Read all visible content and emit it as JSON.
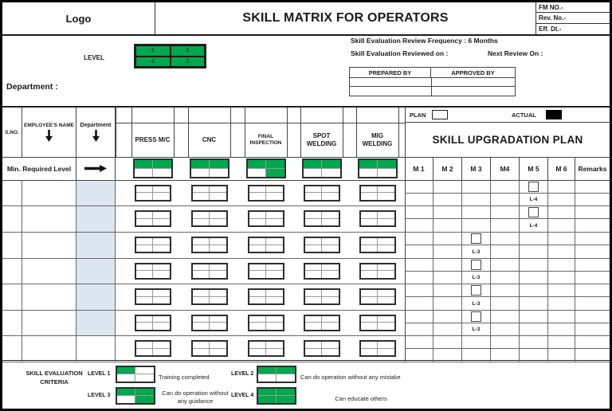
{
  "header": {
    "logo": "Logo",
    "title": "SKILL MATRIX FOR OPERATORS",
    "doc_fields": [
      "FM NO.-",
      "Rev. No.-",
      "Eff. Dt.-"
    ]
  },
  "level_legend": {
    "label": "LEVEL",
    "cells": [
      [
        "1",
        "2"
      ],
      [
        "4",
        "3"
      ]
    ]
  },
  "review_info": {
    "frequency": "Skill Evaluation Review Frequency :  6 Months",
    "reviewed_on": "Skill Evaluation Reviewed on  :",
    "next_review": "Next Review On  :"
  },
  "signoff": {
    "columns": [
      "PREPARED BY",
      "APPROVED BY"
    ],
    "empty_rows": 2
  },
  "department_label": "Department :",
  "matrix": {
    "col_headers": {
      "sno": "S.NO.",
      "name": "EMPLOYEE'S NAME",
      "dept": "Department"
    },
    "machines": [
      "PRESS M/C",
      "CNC",
      "FINAL INSPECTION",
      "SPOT WELDING",
      "MIG WELDING"
    ],
    "min_required": {
      "label": "Min. Required Level",
      "levels": [
        2,
        2,
        3,
        2,
        2
      ]
    },
    "rows": [
      {
        "sno": "",
        "name": "",
        "dept": "",
        "dept_shaded": true,
        "levels": [
          0,
          0,
          0,
          0,
          0
        ],
        "plan": {
          "month": "M 5",
          "target": "L-4"
        }
      },
      {
        "sno": "",
        "name": "",
        "dept": "",
        "dept_shaded": true,
        "levels": [
          0,
          0,
          0,
          0,
          0
        ],
        "plan": {
          "month": "M 5",
          "target": "L-4"
        }
      },
      {
        "sno": "",
        "name": "",
        "dept": "",
        "dept_shaded": true,
        "levels": [
          0,
          0,
          0,
          0,
          0
        ],
        "plan": {
          "month": "M 3",
          "target": "L-3"
        }
      },
      {
        "sno": "",
        "name": "",
        "dept": "",
        "dept_shaded": true,
        "levels": [
          0,
          0,
          0,
          0,
          0
        ],
        "plan": {
          "month": "M 3",
          "target": "L-3"
        }
      },
      {
        "sno": "",
        "name": "",
        "dept": "",
        "dept_shaded": true,
        "levels": [
          0,
          0,
          0,
          0,
          0
        ],
        "plan": {
          "month": "M 3",
          "target": "L-3"
        }
      },
      {
        "sno": "",
        "name": "",
        "dept": "",
        "dept_shaded": true,
        "levels": [
          0,
          0,
          0,
          0,
          0
        ],
        "plan": {
          "month": "M 3",
          "target": "L-3"
        }
      },
      {
        "sno": "",
        "name": "",
        "dept": "",
        "dept_shaded": false,
        "levels": [
          0,
          0,
          0,
          0,
          0
        ],
        "plan": null
      }
    ]
  },
  "upgradation": {
    "plan_label": "PLAN",
    "actual_label": "ACTUAL",
    "title": "SKILL UPGRADATION PLAN",
    "month_headers": [
      "M 1",
      "M 2",
      "M 3",
      "M4",
      "M 5",
      "M 6",
      "Remarks"
    ]
  },
  "criteria": {
    "title": "SKILL EVALUATION CRITERIA",
    "items": [
      {
        "label": "LEVEL 1",
        "level": 1,
        "desc": "Training completed"
      },
      {
        "label": "LEVEL 2",
        "level": 2,
        "desc": "Can do operation without any mistake"
      },
      {
        "label": "LEVEL 3",
        "level": 3,
        "desc": "Can do operation without any guidance"
      },
      {
        "label": "LEVEL 4",
        "level": 4,
        "desc": "Can educate others"
      }
    ]
  },
  "colors": {
    "level_green": "#00a94e",
    "dept_shade": "#dce6f1",
    "plan_fill": "#ffffff",
    "actual_fill": "#000000"
  }
}
